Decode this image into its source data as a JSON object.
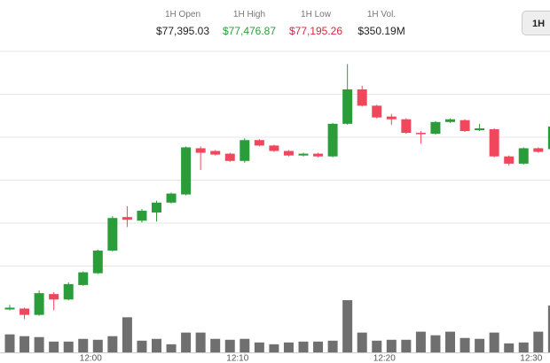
{
  "header": {
    "stats": [
      {
        "label": "1H Open",
        "value": "$77,395.03"
      },
      {
        "label": "1H High",
        "value": "$77,476.87"
      },
      {
        "label": "1H Low",
        "value": "$77,195.26"
      },
      {
        "label": "1H Vol.",
        "value": "$350.19M"
      }
    ],
    "button": "1H"
  },
  "chart_data": {
    "type": "candlestick",
    "categories": [
      null,
      null,
      null,
      null,
      null,
      null,
      "12:00",
      null,
      null,
      null,
      null,
      null,
      null,
      null,
      null,
      null,
      "12:10",
      null,
      null,
      null,
      null,
      null,
      null,
      null,
      null,
      null,
      "12:20",
      null,
      null,
      null,
      null,
      null,
      null,
      null,
      null,
      null,
      "12:30",
      null
    ],
    "open": [
      77206,
      77207,
      77200,
      77223,
      77217,
      77233,
      77246,
      77271,
      77308,
      77304,
      77313,
      77324,
      77333,
      77384,
      77381,
      77378,
      77370,
      77393,
      77387,
      77381,
      77376,
      77378,
      77375,
      77411,
      77449,
      77431,
      77419,
      77416,
      77401,
      77400,
      77413,
      77415,
      77404,
      77405,
      77375,
      77367,
      77384,
      77383
    ],
    "high": [
      77211,
      77208,
      77227,
      77225,
      77236,
      77248,
      77272,
      77309,
      77320,
      77317,
      77326,
      77335,
      77386,
      77386,
      77382,
      77379,
      77395,
      77394,
      77388,
      77382,
      77379,
      77379,
      77412,
      77476.87,
      77453,
      77432,
      77422,
      77417,
      77403,
      77414,
      77417,
      77416,
      77411,
      77406,
      77376,
      77385,
      77385,
      77410
    ],
    "low": [
      77205,
      77195.26,
      77199,
      77205,
      77216,
      77232,
      77245,
      77270,
      77297,
      77302,
      77303,
      77323,
      77332,
      77360,
      77376,
      77369,
      77368,
      77386,
      77380,
      77375,
      77375,
      77374,
      77374,
      77410,
      77430,
      77417,
      77410,
      77400,
      77389,
      77399,
      77412,
      77402,
      77403,
      77374,
      77365,
      77366,
      77379,
      77382
    ],
    "close": [
      77208,
      77200,
      77224,
      77217,
      77234,
      77247,
      77271,
      77307,
      77305,
      77315,
      77324,
      77334,
      77385,
      77379,
      77377,
      77370,
      77393,
      77387,
      77381,
      77376,
      77378,
      77375,
      77411,
      77449,
      77431,
      77418,
      77416,
      77401,
      77400,
      77413,
      77416,
      77403,
      77406,
      77375,
      77367,
      77384,
      77380,
      77408
    ],
    "volume": [
      20,
      18,
      17,
      12,
      12,
      15,
      14,
      18,
      39,
      13,
      15,
      9,
      22,
      22,
      15,
      14,
      15,
      11,
      9,
      11,
      12,
      12,
      13,
      58,
      22,
      13,
      14,
      14,
      23,
      19,
      23,
      16,
      15,
      22,
      10,
      11,
      23,
      52
    ],
    "ylim": [
      77185,
      77491
    ],
    "vlim": [
      0,
      60
    ],
    "up_color": "#2a9d3a",
    "down_color": "#f0475c",
    "volume_color": "#6f6f6f",
    "grid": true
  }
}
